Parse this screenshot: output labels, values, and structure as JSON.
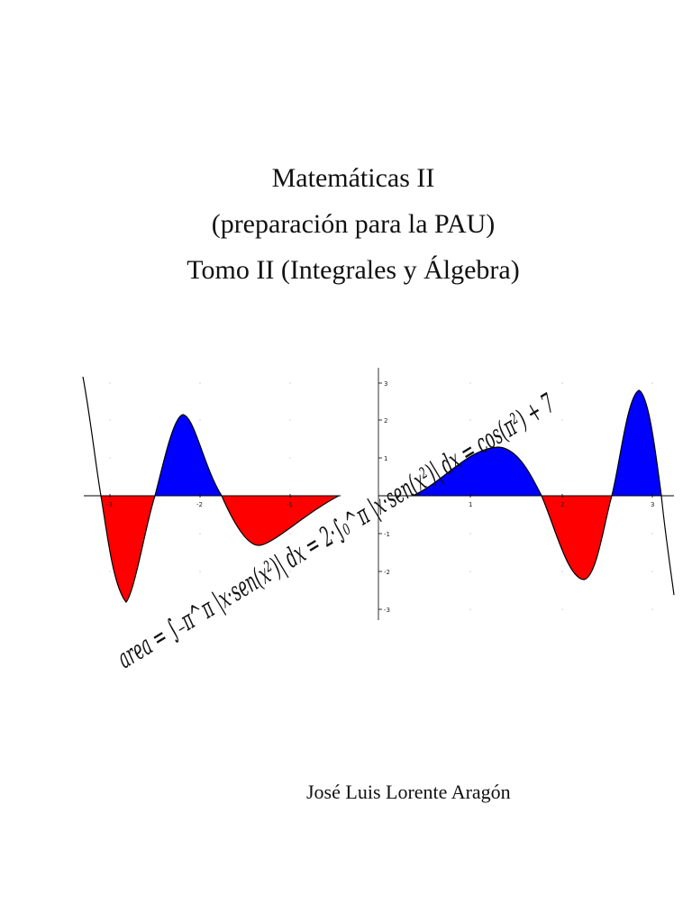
{
  "title": {
    "line1": "Matemáticas II",
    "line2": "(preparación para la PAU)",
    "line3": "Tomo II (Integrales y Álgebra)"
  },
  "author": "José Luis Lorente Aragón",
  "figure": {
    "formula": "area = ∫₋π^π |x·sen(x²)| dx = 2·∫₀^π |x·sen(x²)| dx = cos(π²) + 7",
    "colors": {
      "positive_fill": "#0000ff",
      "negative_fill": "#ff0000",
      "curve": "#000000"
    },
    "left_axis_tick_labels": [
      "-3",
      "-2",
      "-1"
    ],
    "right_axis_x_tick_labels": [
      "1",
      "2",
      "3"
    ],
    "right_axis_y_tick_labels": [
      "3",
      "2",
      "1",
      "-1",
      "-2",
      "-3"
    ]
  }
}
